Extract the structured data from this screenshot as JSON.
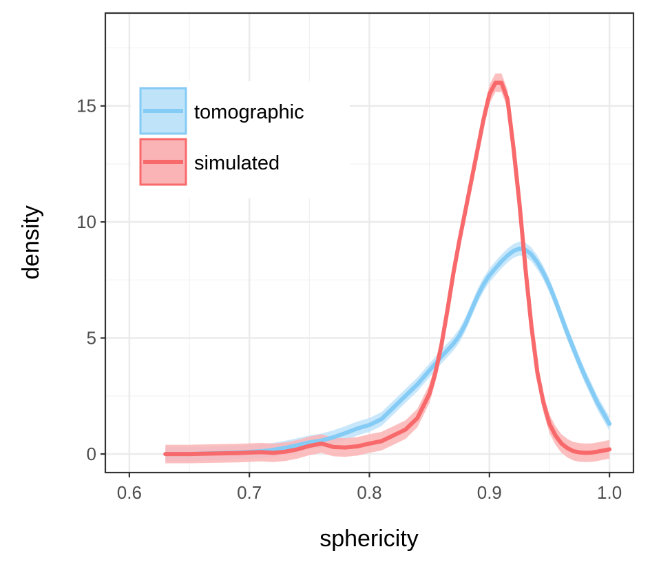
{
  "chart_data": {
    "type": "line",
    "title": "",
    "xlabel": "sphericity",
    "ylabel": "density",
    "xlim": [
      0.58,
      1.02
    ],
    "ylim": [
      -0.8,
      19.0
    ],
    "x_ticks": [
      0.6,
      0.7,
      0.8,
      0.9,
      1.0
    ],
    "x_tick_labels": [
      "0.6",
      "0.7",
      "0.8",
      "0.9",
      "1.0"
    ],
    "y_ticks": [
      0,
      5,
      10,
      15
    ],
    "y_tick_labels": [
      "0",
      "5",
      "10",
      "15"
    ],
    "grid": true,
    "legend": {
      "placement": "top-left"
    },
    "series": [
      {
        "name": "tomographic",
        "color": "#84CBF5",
        "band_color": "#BFE3F9",
        "band_halfwidth": 0.3,
        "x": [
          0.63,
          0.65,
          0.67,
          0.69,
          0.7,
          0.71,
          0.72,
          0.73,
          0.74,
          0.75,
          0.76,
          0.77,
          0.78,
          0.79,
          0.8,
          0.81,
          0.82,
          0.83,
          0.84,
          0.85,
          0.86,
          0.87,
          0.875,
          0.88,
          0.885,
          0.89,
          0.895,
          0.9,
          0.905,
          0.91,
          0.915,
          0.92,
          0.925,
          0.93,
          0.935,
          0.94,
          0.945,
          0.95,
          0.955,
          0.96,
          0.965,
          0.97,
          0.975,
          0.98,
          0.985,
          0.99,
          0.995,
          1.0
        ],
        "y": [
          0.0,
          0.0,
          0.03,
          0.06,
          0.09,
          0.12,
          0.18,
          0.27,
          0.38,
          0.5,
          0.58,
          0.72,
          0.9,
          1.1,
          1.25,
          1.5,
          2.0,
          2.5,
          3.0,
          3.6,
          4.2,
          4.75,
          5.1,
          5.6,
          6.2,
          6.8,
          7.3,
          7.7,
          8.0,
          8.3,
          8.55,
          8.75,
          8.85,
          8.8,
          8.6,
          8.25,
          7.8,
          7.25,
          6.6,
          5.9,
          5.2,
          4.55,
          3.9,
          3.3,
          2.75,
          2.2,
          1.75,
          1.3
        ]
      },
      {
        "name": "simulated",
        "color": "#F8696B",
        "band_color": "#FBB4B5",
        "band_halfwidth": 0.4,
        "x": [
          0.63,
          0.65,
          0.67,
          0.69,
          0.7,
          0.71,
          0.72,
          0.73,
          0.74,
          0.75,
          0.76,
          0.77,
          0.78,
          0.79,
          0.8,
          0.81,
          0.82,
          0.83,
          0.84,
          0.85,
          0.855,
          0.86,
          0.865,
          0.87,
          0.875,
          0.88,
          0.885,
          0.89,
          0.895,
          0.9,
          0.905,
          0.91,
          0.915,
          0.92,
          0.925,
          0.93,
          0.935,
          0.94,
          0.945,
          0.95,
          0.955,
          0.96,
          0.965,
          0.97,
          0.975,
          0.98,
          0.985,
          0.99,
          0.995,
          1.0
        ],
        "y": [
          0.0,
          0.0,
          0.02,
          0.04,
          0.06,
          0.08,
          0.05,
          0.1,
          0.2,
          0.35,
          0.45,
          0.3,
          0.28,
          0.33,
          0.45,
          0.55,
          0.8,
          1.05,
          1.55,
          2.6,
          3.5,
          4.7,
          6.2,
          7.8,
          9.2,
          10.5,
          11.8,
          13.1,
          14.4,
          15.5,
          16.0,
          16.0,
          15.3,
          13.2,
          10.8,
          8.0,
          5.5,
          3.5,
          2.2,
          1.3,
          0.8,
          0.45,
          0.25,
          0.12,
          0.07,
          0.05,
          0.06,
          0.1,
          0.15,
          0.2
        ]
      }
    ]
  }
}
